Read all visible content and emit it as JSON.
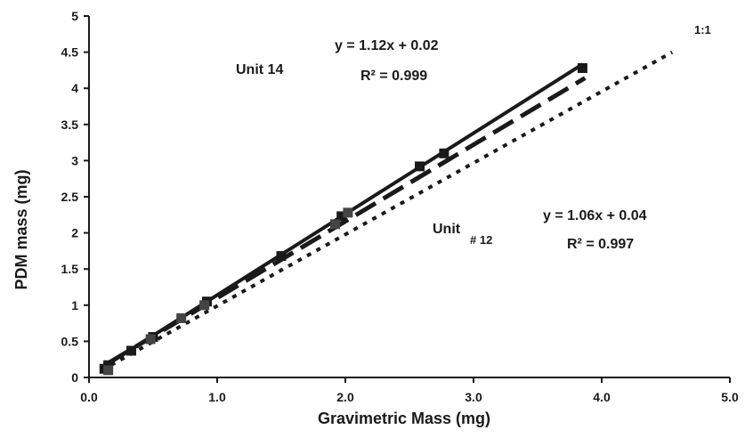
{
  "chart_data": {
    "type": "scatter",
    "xlabel": "Gravimetric Mass (mg)",
    "ylabel": "PDM mass  (mg)",
    "xlim": [
      0,
      5
    ],
    "ylim": [
      0,
      5
    ],
    "x_ticks": [
      "0.0",
      "1.0",
      "2.0",
      "3.0",
      "4.0",
      "5.0"
    ],
    "y_ticks": [
      "0",
      "0.5",
      "1",
      "1.5",
      "2",
      "2.5",
      "3",
      "3.5",
      "4",
      "4.5",
      "5"
    ],
    "grid": false,
    "series": [
      {
        "name": "Unit 14",
        "style": "solid",
        "color": "#1a1a1a",
        "marker": "square",
        "points": [
          {
            "x": 0.12,
            "y": 0.12
          },
          {
            "x": 0.15,
            "y": 0.17
          },
          {
            "x": 0.33,
            "y": 0.37
          },
          {
            "x": 0.5,
            "y": 0.56
          },
          {
            "x": 0.92,
            "y": 1.05
          },
          {
            "x": 1.5,
            "y": 1.68
          },
          {
            "x": 1.97,
            "y": 2.23
          },
          {
            "x": 2.58,
            "y": 2.92
          },
          {
            "x": 2.77,
            "y": 3.1
          },
          {
            "x": 3.85,
            "y": 4.28
          }
        ],
        "fit": {
          "slope": 1.12,
          "intercept": 0.02
        },
        "equation": "y = 1.12x + 0.02",
        "r2": "R² = 0.999"
      },
      {
        "name": "Unit # 12",
        "style": "dashed",
        "color": "#1a1a1a",
        "marker": "square",
        "points": [
          {
            "x": 0.15,
            "y": 0.1
          },
          {
            "x": 0.48,
            "y": 0.53
          },
          {
            "x": 0.72,
            "y": 0.82
          },
          {
            "x": 0.9,
            "y": 1.0
          },
          {
            "x": 1.92,
            "y": 2.12
          },
          {
            "x": 2.02,
            "y": 2.28
          }
        ],
        "fit": {
          "slope": 1.06,
          "intercept": 0.04
        },
        "equation": "y = 1.06x + 0.04",
        "r2": "R² = 0.997"
      }
    ],
    "reference_line": {
      "label": "1:1",
      "from": [
        0.1,
        0.1
      ],
      "to": [
        4.55,
        4.5
      ],
      "style": "dotted"
    },
    "annotations": {
      "unit14_label": "Unit 14",
      "unit12_label_main": "Unit",
      "unit12_label_sub": "# 12",
      "ref_label": "1:1"
    }
  }
}
